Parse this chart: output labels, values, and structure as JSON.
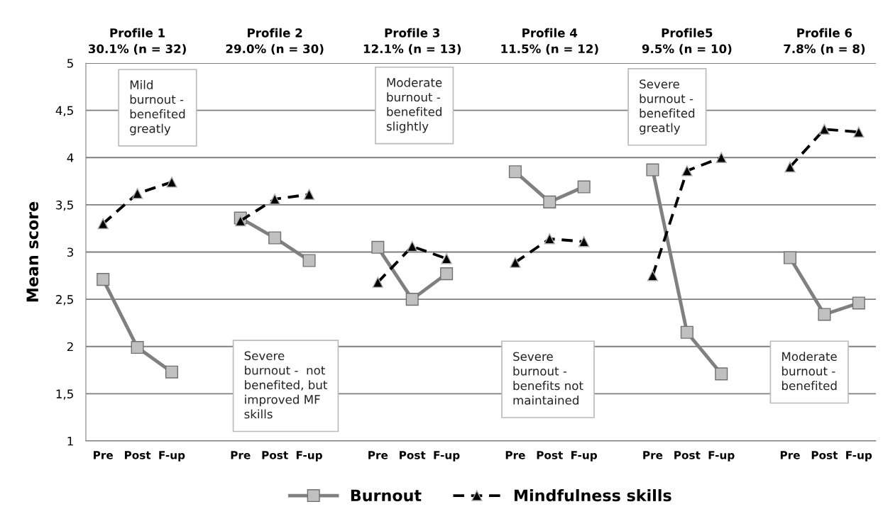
{
  "chart_data": {
    "type": "line",
    "categories": [
      "Pre",
      "Post",
      "F-up",
      null,
      "Pre",
      "Post",
      "F-up",
      null,
      "Pre",
      "Post",
      "F-up",
      null,
      "Pre",
      "Post",
      "F-up",
      null,
      "Pre",
      "Post",
      "F-up",
      null,
      "Pre",
      "Post",
      "F-up"
    ],
    "series": [
      {
        "name": "Burnout",
        "color": "#808080",
        "marker": "square",
        "line_style": "solid",
        "values": [
          2.71,
          1.99,
          1.73,
          null,
          3.36,
          3.15,
          2.91,
          null,
          3.05,
          2.5,
          2.77,
          null,
          3.85,
          3.53,
          3.69,
          null,
          3.87,
          2.15,
          1.71,
          null,
          2.94,
          2.34,
          2.46
        ]
      },
      {
        "name": "Mindfulness skills",
        "color": "#000000",
        "marker": "triangle",
        "line_style": "dashed",
        "values": [
          3.3,
          3.62,
          3.74,
          null,
          3.33,
          3.56,
          3.61,
          null,
          2.68,
          3.06,
          2.93,
          null,
          2.89,
          3.14,
          3.11,
          null,
          2.75,
          3.86,
          4.0,
          null,
          3.9,
          4.3,
          4.27
        ]
      }
    ],
    "ylabel": "Mean score",
    "ylim": [
      1,
      5
    ],
    "yticks": [
      1,
      {
        "value": 1.5,
        "label": "1,5"
      },
      2,
      {
        "value": 2.5,
        "label": "2,5"
      },
      3,
      {
        "value": 3.5,
        "label": "3,5"
      },
      4,
      {
        "value": 4.5,
        "label": "4,5"
      },
      5
    ],
    "grid": "y",
    "legend": "bottom",
    "annotations": [
      "Profile 1\n30.1% (n = 32)",
      "Profile 2\n29.0% (n = 30)",
      "Profile 3\n12.1% (n = 13)",
      "Profile 4\n11.5% (n = 12)",
      "Profile5\n9.5% (n = 10)",
      "Profile 6\n7.8% (n = 8)",
      "Mild\nburnout -\nbenefited\ngreatly",
      "Severe\nburnout -  not\nbenefited, but\nimproved MF\nskills",
      "Moderate\nburnout -\nbenefited\nslightly",
      "Severe\nburnout -\nbenefits not\nmaintained",
      "Severe\nburnout -\nbenefited\ngreatly",
      "Moderate\nburnout -\nbenefited"
    ]
  }
}
